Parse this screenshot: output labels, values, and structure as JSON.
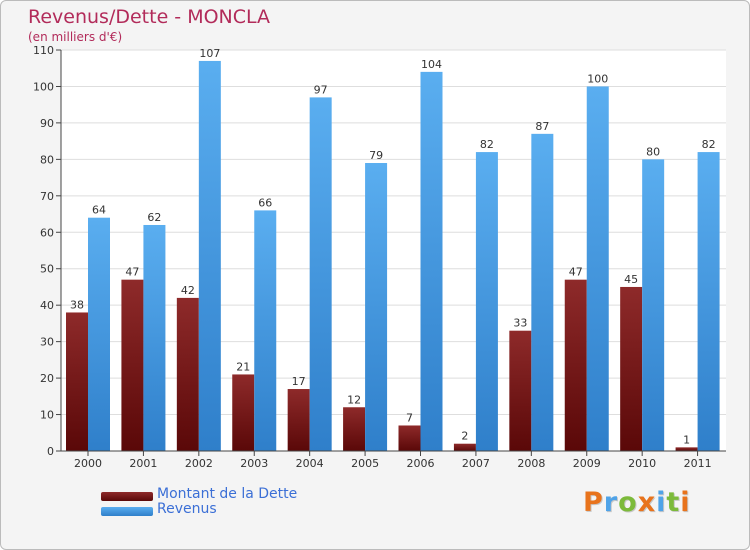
{
  "title": "Revenus/Dette - MONCLA",
  "subtitle": "(en milliers d'€)",
  "colors": {
    "dette": "#7a1515",
    "revenus": "#4fa3e8",
    "title": "#b22b5a"
  },
  "legend": {
    "position": "bottom-left",
    "items": [
      "Montant de la Dette",
      "Revenus"
    ]
  },
  "logo": {
    "text": "Proxiti",
    "letters": [
      "P",
      "r",
      "o",
      "x",
      "i",
      "t",
      "i"
    ],
    "colors": [
      "#e8731c",
      "#4fa3e8",
      "#7cba3a",
      "#e8731c",
      "#4fa3e8",
      "#7cba3a",
      "#e8731c"
    ]
  },
  "chart_data": {
    "type": "bar",
    "title": "Revenus/Dette - MONCLA",
    "subtitle": "(en milliers d'€)",
    "xlabel": "",
    "ylabel": "",
    "categories": [
      "2000",
      "2001",
      "2002",
      "2003",
      "2004",
      "2005",
      "2006",
      "2007",
      "2008",
      "2009",
      "2010",
      "2011"
    ],
    "ylim": [
      0,
      110
    ],
    "yticks": [
      0,
      10,
      20,
      30,
      40,
      50,
      60,
      70,
      80,
      90,
      100,
      110
    ],
    "grid": true,
    "series": [
      {
        "name": "Montant de la Dette",
        "values": [
          38,
          47,
          42,
          21,
          17,
          12,
          7,
          2,
          33,
          47,
          45,
          1
        ]
      },
      {
        "name": "Revenus",
        "values": [
          64,
          62,
          107,
          66,
          97,
          79,
          104,
          82,
          87,
          100,
          80,
          82
        ]
      }
    ]
  }
}
